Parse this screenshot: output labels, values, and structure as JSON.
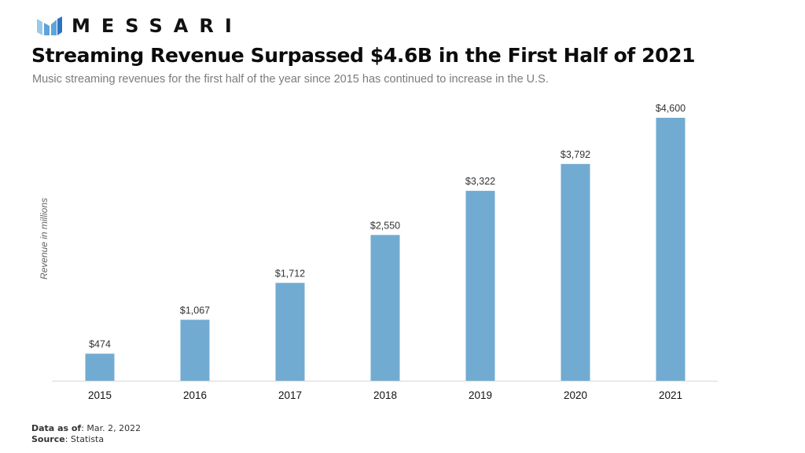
{
  "brand": {
    "name": "MESSARI",
    "logo_icon": "messari-logo-icon",
    "colors": {
      "logo_light": "#9cc8ea",
      "logo_mid": "#5ea3da",
      "logo_dark": "#2f72c2"
    }
  },
  "header": {
    "title": "Streaming Revenue Surpassed $4.6B in the First Half of 2021",
    "subtitle": "Music streaming revenues for the first half of the year since 2015 has continued to increase in the U.S."
  },
  "chart_data": {
    "type": "bar",
    "title": "Streaming Revenue Surpassed $4.6B in the First Half of 2021",
    "subtitle": "Music streaming revenues for the first half of the year since 2015 has continued to increase in the U.S.",
    "xlabel": "",
    "ylabel": "Revenue in millions",
    "categories": [
      "2015",
      "2016",
      "2017",
      "2018",
      "2019",
      "2020",
      "2021"
    ],
    "values": [
      474,
      1067,
      1712,
      2550,
      3322,
      3792,
      4600
    ],
    "data_labels": [
      "$474",
      "$1,067",
      "$1,712",
      "$2,550",
      "$3,322",
      "$3,792",
      "$4,600"
    ],
    "ylim": [
      0,
      4600
    ],
    "grid": false,
    "legend": "none",
    "bar_color": "#72abd2",
    "axis_color": "#e2e2e2"
  },
  "footer": {
    "data_as_of_label": "Data as of",
    "data_as_of_value": ": Mar. 2, 2022",
    "source_label": "Source",
    "source_value": ": Statista"
  }
}
